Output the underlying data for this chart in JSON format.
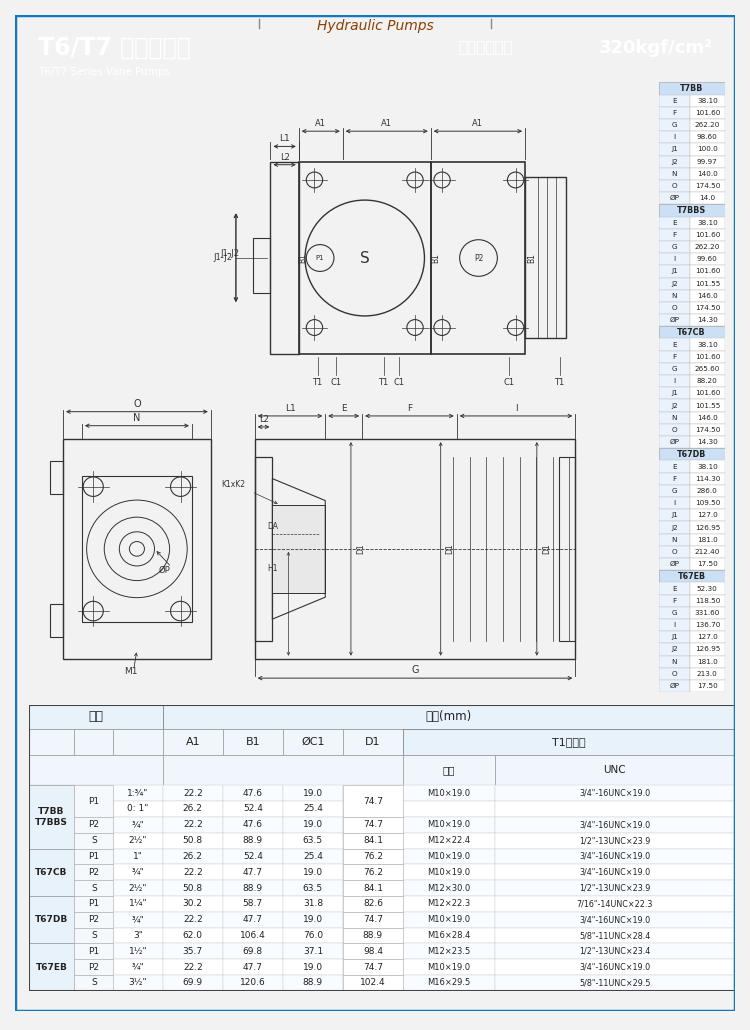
{
  "title_hydraulic": "Hydraulic Pumps",
  "title_main": "T6/T7 系列葉片泵",
  "title_sub": "T6/T7 Series Vane Pumps",
  "title_pressure_label": "最高工作壓力",
  "title_pressure_value": "320kgf/cm²",
  "header_bg": "#1478be",
  "page_bg": "#f2f2f2",
  "draw_bg": "white",
  "side_table_headers": [
    "T7BB",
    "T7BBS",
    "T67CB",
    "T67DB",
    "T67EB"
  ],
  "side_table_labels": [
    "E",
    "F",
    "G",
    "I",
    "J1",
    "J2",
    "N",
    "O",
    "ØP"
  ],
  "side_table_data": {
    "T7BB": [
      38.1,
      101.6,
      262.2,
      98.6,
      100.0,
      99.97,
      140.0,
      174.5,
      14.0
    ],
    "T7BBS": [
      38.1,
      101.6,
      262.2,
      99.6,
      101.6,
      101.55,
      146.0,
      174.5,
      14.3
    ],
    "T67CB": [
      38.1,
      101.6,
      265.6,
      88.2,
      101.6,
      101.55,
      146.0,
      174.5,
      14.3
    ],
    "T67DB": [
      38.1,
      114.3,
      286.0,
      109.5,
      127.0,
      126.95,
      181.0,
      212.4,
      17.5
    ],
    "T67EB": [
      52.3,
      118.5,
      331.6,
      136.7,
      127.0,
      126.95,
      181.0,
      213.0,
      17.5
    ]
  },
  "btable_rows": [
    [
      "T7BB\nT7BBS",
      "P1",
      "1:¾\"",
      "22.2",
      "47.6",
      "19.0",
      "74.7",
      "M10×19.0",
      "3/4\"-16UNC×19.0"
    ],
    [
      "",
      "",
      "0: 1\"",
      "26.2",
      "52.4",
      "25.4",
      "",
      "",
      ""
    ],
    [
      "",
      "P2",
      "¾\"",
      "22.2",
      "47.6",
      "19.0",
      "74.7",
      "M10×19.0",
      "3/4\"-16UNC×19.0"
    ],
    [
      "",
      "S",
      "2½\"",
      "50.8",
      "88.9",
      "63.5",
      "84.1",
      "M12×22.4",
      "1/2\"-13UNC×23.9"
    ],
    [
      "T67CB",
      "P1",
      "1\"",
      "26.2",
      "52.4",
      "25.4",
      "76.2",
      "M10×19.0",
      "3/4\"-16UNC×19.0"
    ],
    [
      "",
      "P2",
      "¾\"",
      "22.2",
      "47.7",
      "19.0",
      "76.2",
      "M10×19.0",
      "3/4\"-16UNC×19.0"
    ],
    [
      "",
      "S",
      "2½\"",
      "50.8",
      "88.9",
      "63.5",
      "84.1",
      "M12×30.0",
      "1/2\"-13UNC×23.9"
    ],
    [
      "T67DB",
      "P1",
      "1¼\"",
      "30.2",
      "58.7",
      "31.8",
      "82.6",
      "M12×22.3",
      "7/16\"-14UNC×22.3"
    ],
    [
      "",
      "P2",
      "¾\"",
      "22.2",
      "47.7",
      "19.0",
      "74.7",
      "M10×19.0",
      "3/4\"-16UNC×19.0"
    ],
    [
      "",
      "S",
      "3\"",
      "62.0",
      "106.4",
      "76.0",
      "88.9",
      "M16×28.4",
      "5/8\"-11UNC×28.4"
    ],
    [
      "T67EB",
      "P1",
      "1½\"",
      "35.7",
      "69.8",
      "37.1",
      "98.4",
      "M12×23.5",
      "1/2\"-13UNC×23.4"
    ],
    [
      "",
      "P2",
      "¾\"",
      "22.2",
      "47.7",
      "19.0",
      "74.7",
      "M10×19.0",
      "3/4\"-16UNC×19.0"
    ],
    [
      "",
      "S",
      "3½\"",
      "69.9",
      "120.6",
      "88.9",
      "102.4",
      "M16×29.5",
      "5/8\"-11UNC×29.5"
    ]
  ],
  "line_color": "#333333",
  "dim_color": "#333333",
  "accent_blue": "#1478be"
}
